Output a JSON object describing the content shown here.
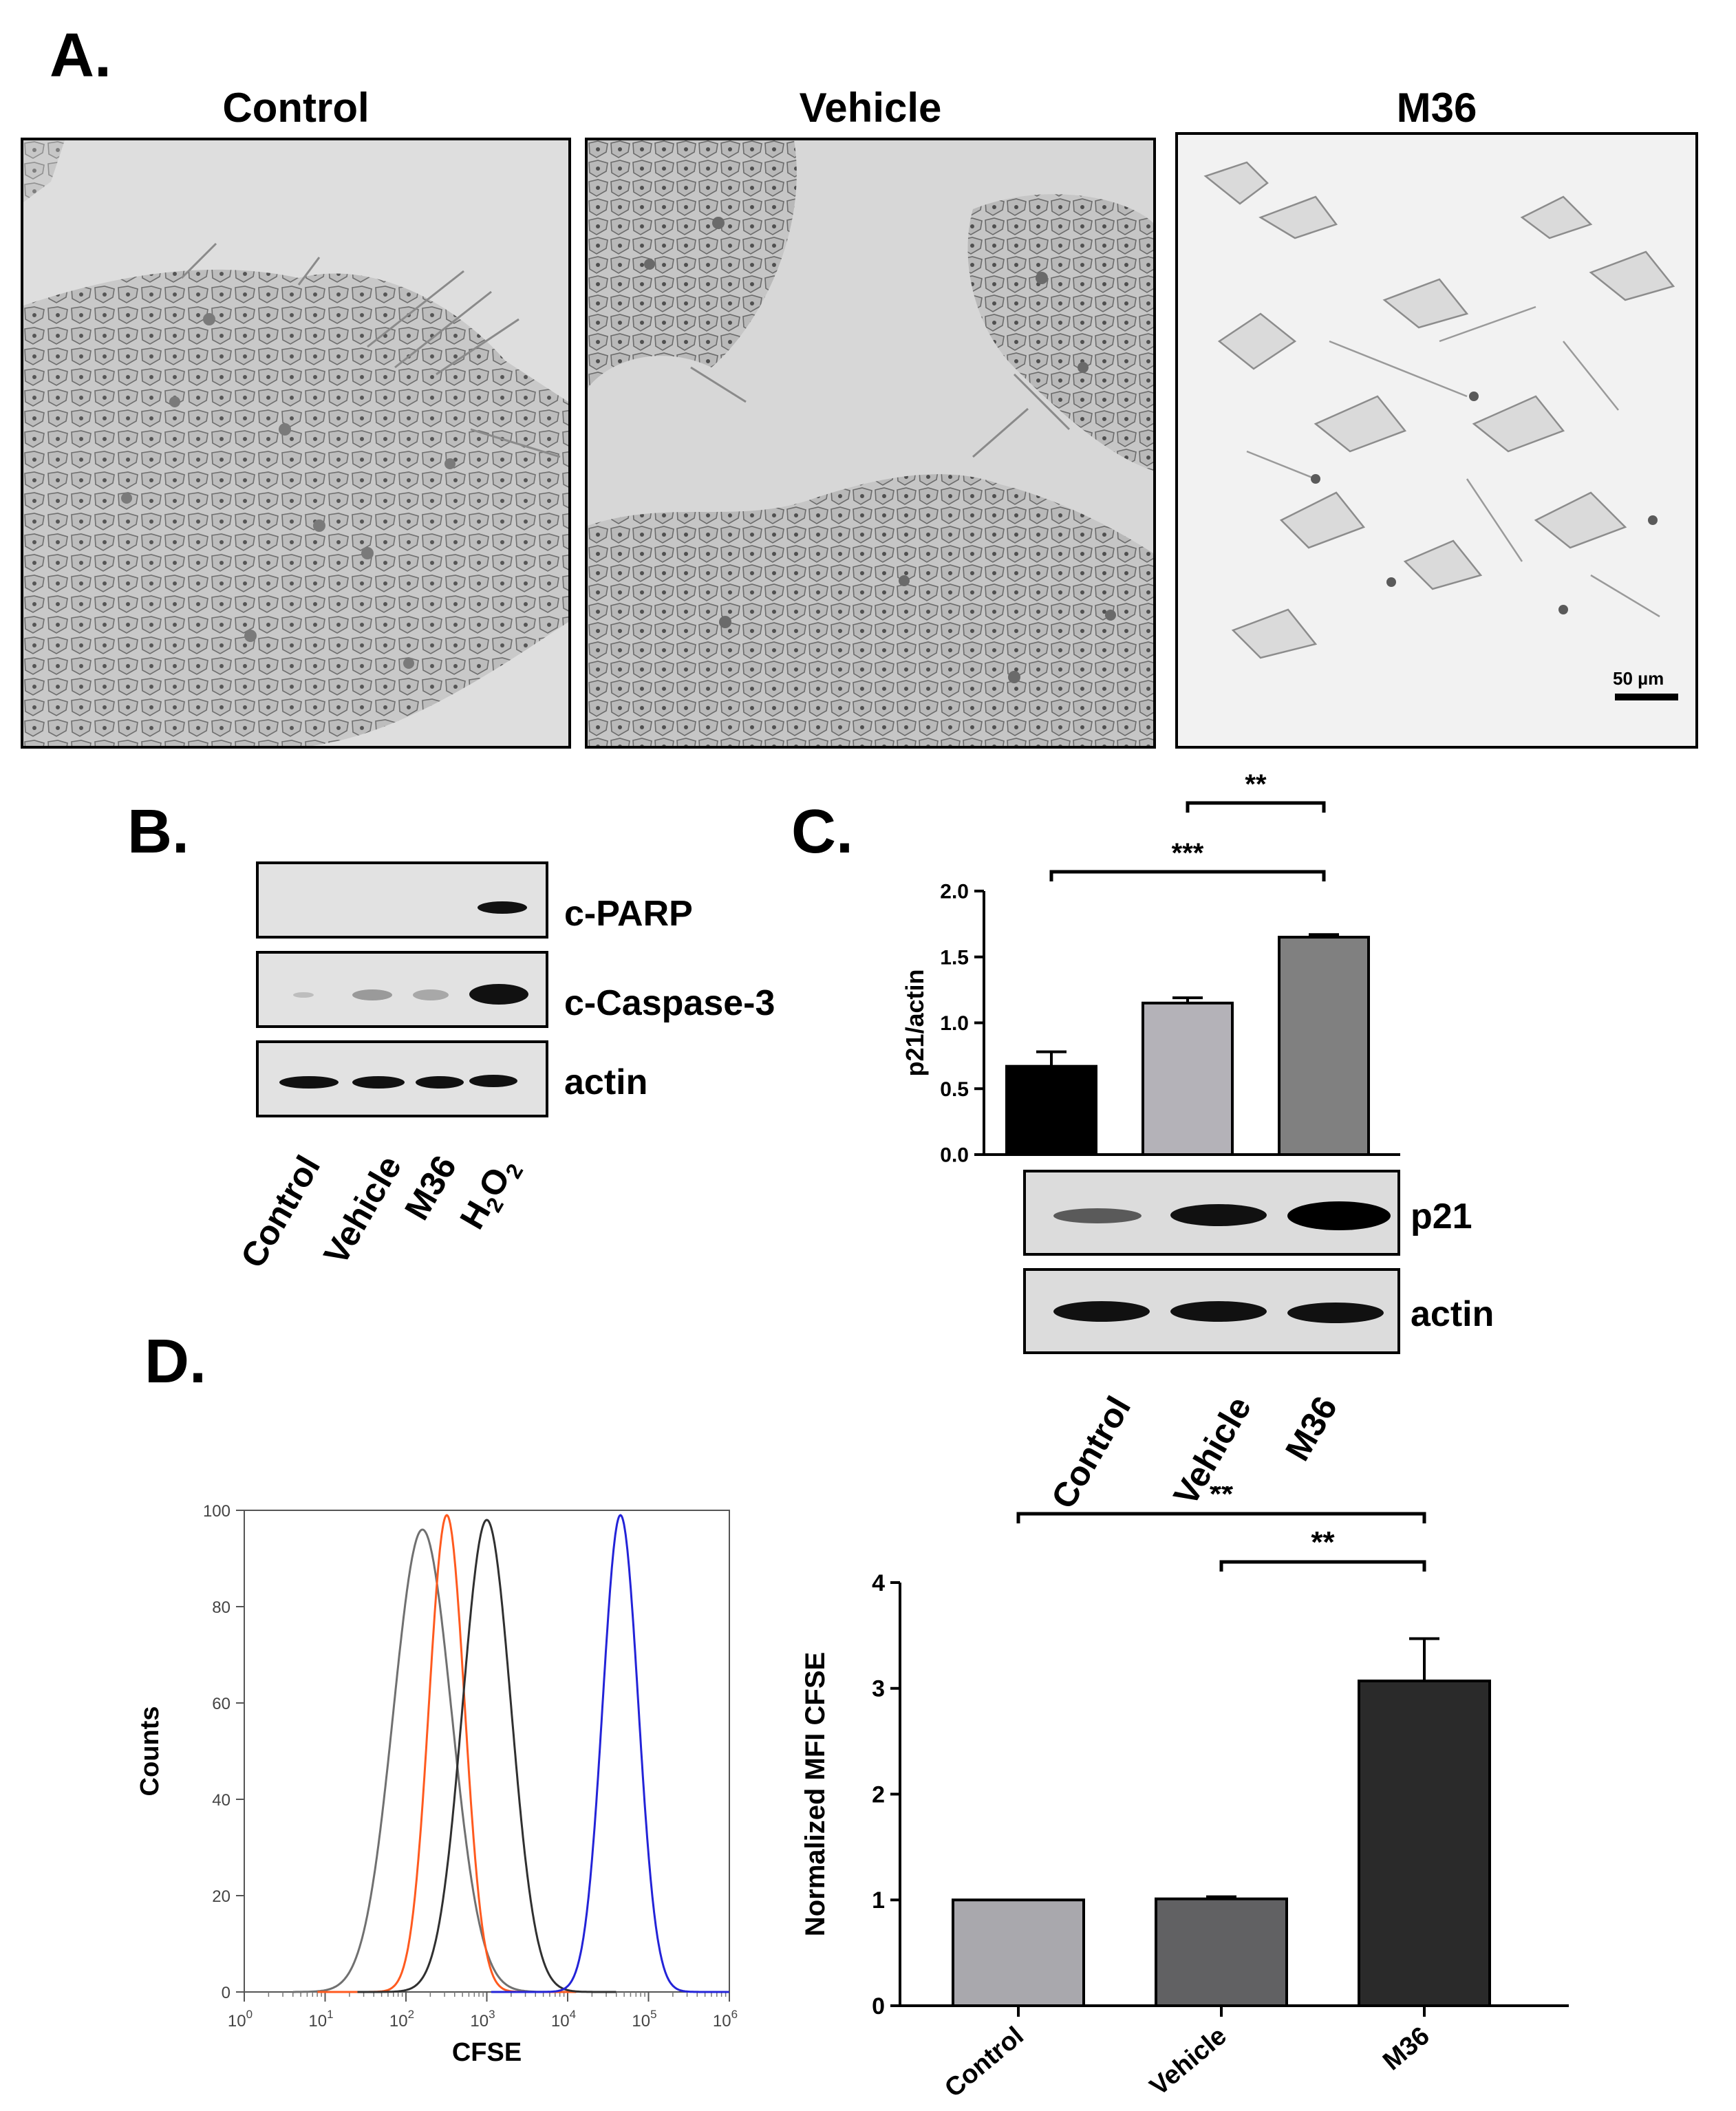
{
  "panelA": {
    "letter": "A.",
    "images": [
      {
        "title": "Control"
      },
      {
        "title": "Vehicle"
      },
      {
        "title": "M36",
        "scale_bar": "50 µm"
      }
    ]
  },
  "panelB": {
    "letter": "B.",
    "rows": [
      "c-PARP",
      "c-Caspase-3",
      "actin"
    ],
    "lanes": [
      "Control",
      "Vehicle",
      "M36",
      "H2O2"
    ],
    "lane_h2o2": {
      "base1": "H",
      "sub1": "2",
      "base2": "O",
      "sub2": "2"
    }
  },
  "panelC": {
    "letter": "C.",
    "blot_rows": [
      "p21",
      "actin"
    ],
    "lanes": [
      "Control",
      "Vehicle",
      "M36"
    ]
  },
  "panelD": {
    "letter": "D."
  },
  "chart_data": [
    {
      "id": "C",
      "type": "bar",
      "ylabel": "p21/actin",
      "categories": [
        "Control",
        "Vehicle",
        "M36"
      ],
      "values": [
        0.67,
        1.15,
        1.65
      ],
      "errors": [
        0.11,
        0.04,
        0.02
      ],
      "colors": [
        "#000000",
        "#b4b2b8",
        "#808080"
      ],
      "ylim": [
        0,
        2.0
      ],
      "yticks": [
        "0.0",
        "0.5",
        "1.0",
        "1.5",
        "2.0"
      ],
      "significance": [
        {
          "from": "Control",
          "to": "M36",
          "label": "***"
        },
        {
          "from": "Vehicle",
          "to": "M36",
          "label": "**"
        }
      ]
    },
    {
      "id": "D-left",
      "type": "line",
      "xlabel": "CFSE",
      "ylabel": "Counts",
      "xscale": "log",
      "xlim": [
        1,
        1000000
      ],
      "ylim": [
        0,
        100
      ],
      "yticks": [
        "0",
        "20",
        "40",
        "60",
        "80",
        "100"
      ],
      "xticks": [
        {
          "base": "10",
          "exp": "0"
        },
        {
          "base": "10",
          "exp": "1"
        },
        {
          "base": "10",
          "exp": "2"
        },
        {
          "base": "10",
          "exp": "3"
        },
        {
          "base": "10",
          "exp": "4"
        },
        {
          "base": "10",
          "exp": "5"
        },
        {
          "base": "10",
          "exp": "6"
        }
      ],
      "series": [
        {
          "color": "#707070",
          "peak_x": 160,
          "peak_y": 96,
          "width": 0.36
        },
        {
          "color": "#ff5a1f",
          "peak_x": 320,
          "peak_y": 99,
          "width": 0.22
        },
        {
          "color": "#303030",
          "peak_x": 1000,
          "peak_y": 98,
          "width": 0.3
        },
        {
          "color": "#2323d8",
          "peak_x": 45000,
          "peak_y": 99,
          "width": 0.22
        }
      ]
    },
    {
      "id": "D-right",
      "type": "bar",
      "ylabel": "Normalized MFI CFSE",
      "categories": [
        "Control",
        "Vehicle",
        "M36"
      ],
      "values": [
        1.0,
        1.01,
        3.07
      ],
      "errors": [
        0.0,
        0.02,
        0.4
      ],
      "colors": [
        "#a9a8ad",
        "#616163",
        "#2a2a2a"
      ],
      "ylim": [
        0,
        4
      ],
      "yticks": [
        "0",
        "1",
        "2",
        "3",
        "4"
      ],
      "significance": [
        {
          "from": "Control",
          "to": "M36",
          "label": "**"
        },
        {
          "from": "Vehicle",
          "to": "M36",
          "label": "**"
        }
      ]
    }
  ]
}
